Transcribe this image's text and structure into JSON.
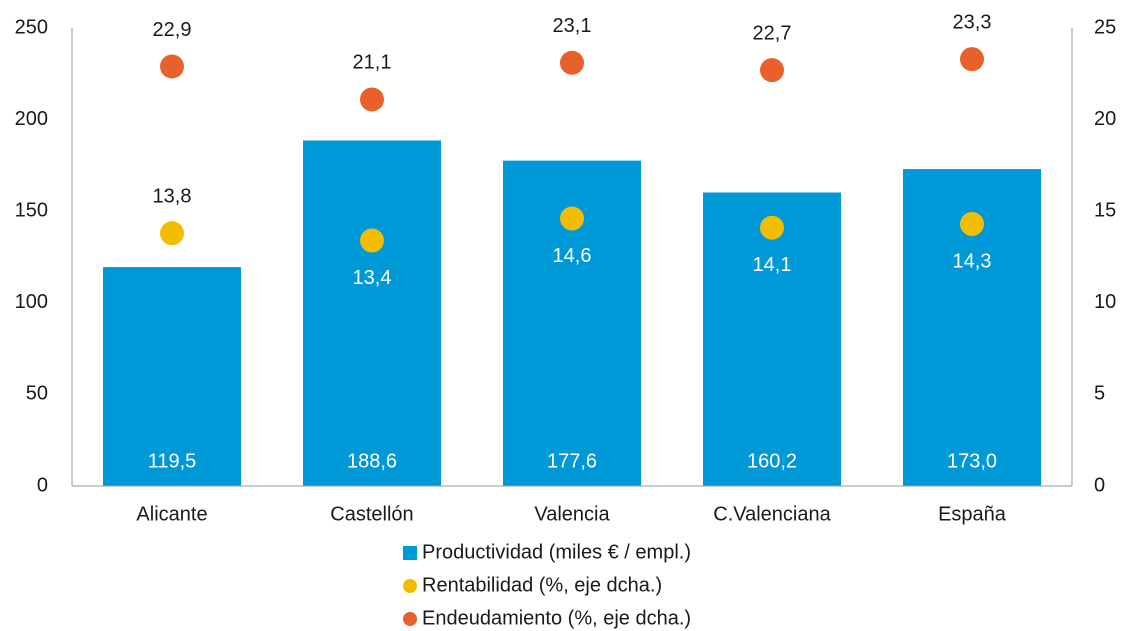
{
  "chart_data": {
    "type": "bar",
    "categories": [
      "Alicante",
      "Castellón",
      "Valencia",
      "C.Valenciana",
      "España"
    ],
    "series": [
      {
        "name": "Productividad (miles € / empl.)",
        "type": "bar",
        "color": "#0099d8",
        "values": [
          119.5,
          188.6,
          177.6,
          160.2,
          173.0
        ],
        "value_labels": [
          "119,5",
          "188,6",
          "177,6",
          "160,2",
          "173,0"
        ]
      },
      {
        "name": "Rentabilidad (%, eje dcha.)",
        "type": "scatter",
        "axis": "y2",
        "color": "#f2bd00",
        "values": [
          13.8,
          13.4,
          14.6,
          14.1,
          14.3
        ],
        "value_labels": [
          "13,8",
          "13,4",
          "14,6",
          "14,1",
          "14,3"
        ]
      },
      {
        "name": "Endeudamiento (%, eje dcha.)",
        "type": "scatter",
        "axis": "y2",
        "color": "#e8602c",
        "values": [
          22.9,
          21.1,
          23.1,
          22.7,
          23.3
        ],
        "value_labels": [
          "22,9",
          "21,1",
          "23,1",
          "22,7",
          "23,3"
        ]
      }
    ],
    "ylim": [
      0,
      250
    ],
    "yticks": [
      0,
      50,
      100,
      150,
      200,
      250
    ],
    "y2lim": [
      0,
      25
    ],
    "y2ticks": [
      0,
      5,
      10,
      15,
      20,
      25
    ]
  }
}
